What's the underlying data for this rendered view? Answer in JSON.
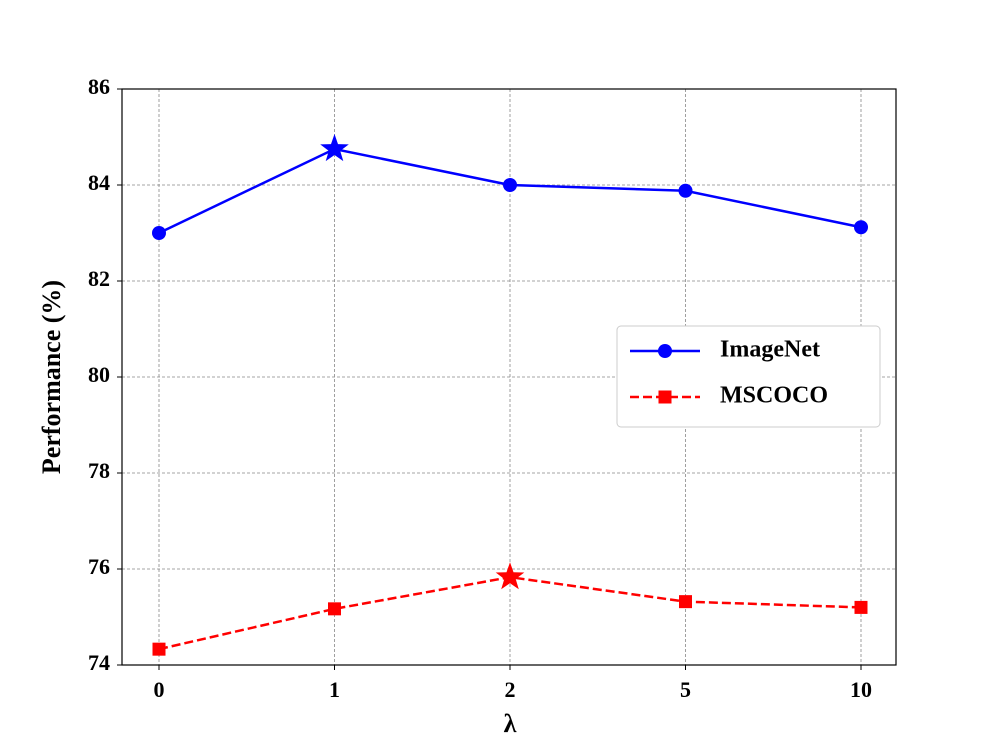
{
  "chart_data": {
    "type": "line",
    "x_label": "λ",
    "y_label": "Performance (%)",
    "categories": [
      "0",
      "1",
      "2",
      "5",
      "10"
    ],
    "series": [
      {
        "name": "ImageNet",
        "color": "#0000ff",
        "linestyle": "solid",
        "marker": "circle",
        "values": [
          83.0,
          84.75,
          84.0,
          83.88,
          83.12
        ]
      },
      {
        "name": "MSCOCO",
        "color": "#ff0000",
        "linestyle": "dashed",
        "marker": "square",
        "values": [
          74.33,
          75.17,
          75.83,
          75.32,
          75.2
        ]
      }
    ],
    "best_marker": "star",
    "ylim": [
      74,
      86
    ],
    "yticks": [
      74,
      76,
      78,
      80,
      82,
      84,
      86
    ],
    "grid": true,
    "legend": "center right"
  }
}
